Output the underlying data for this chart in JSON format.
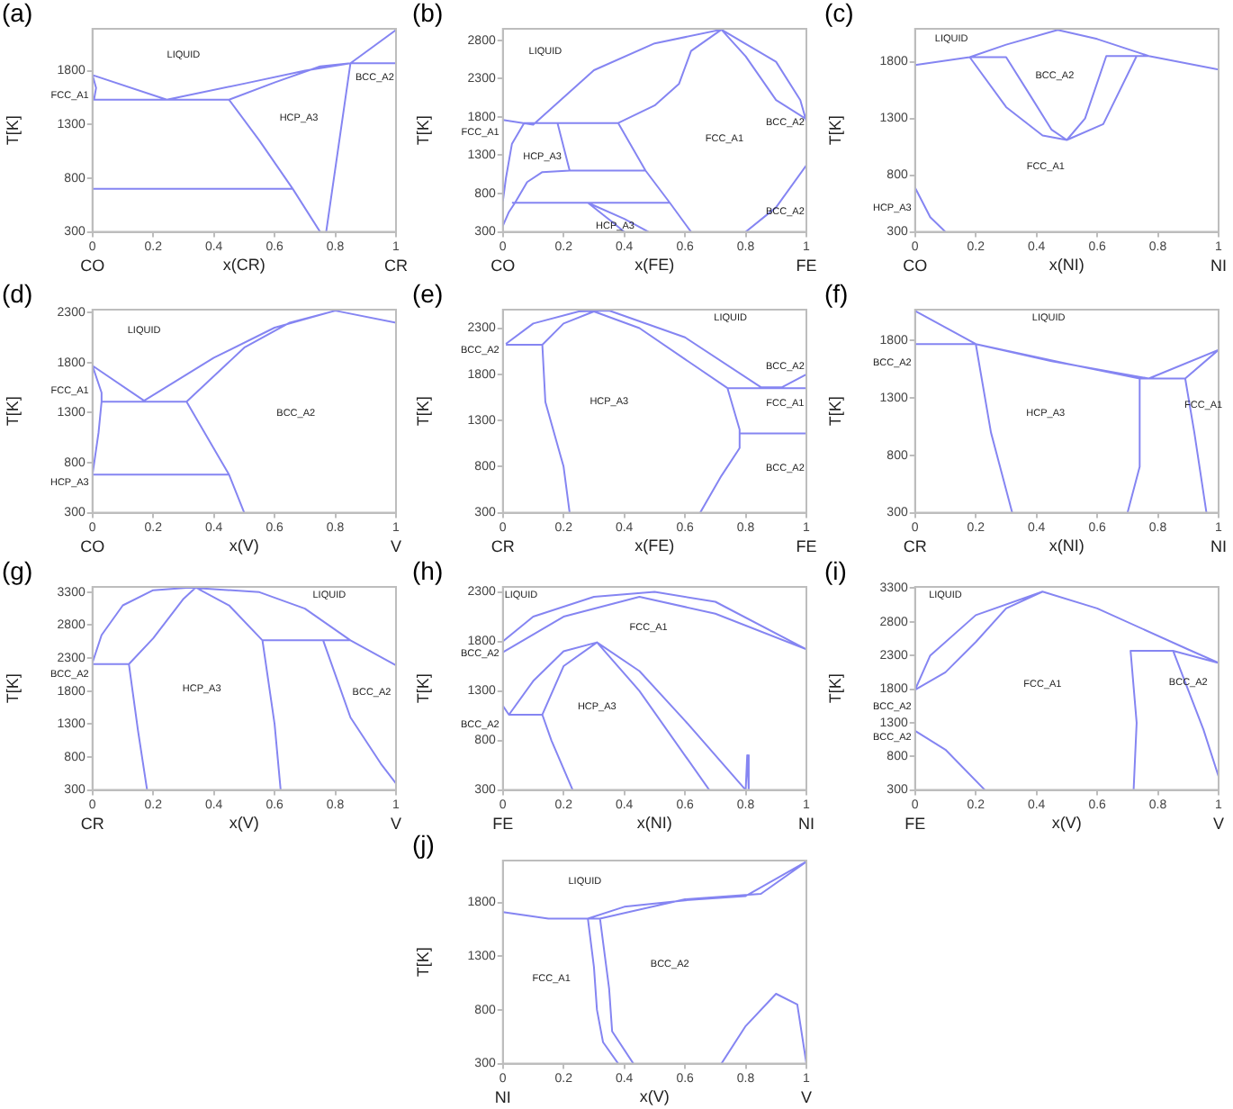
{
  "chart_data": [
    {
      "type": "line",
      "title": "(a)",
      "xlabel": "x(CR)",
      "ylabel": "T[K]",
      "xlim": [
        0,
        1
      ],
      "xticks": [
        0,
        0.2,
        0.4,
        0.6,
        0.8,
        1
      ],
      "ylim": [
        300,
        2190
      ],
      "yticks": [
        300,
        800,
        1300,
        1800
      ],
      "series": [
        {
          "color": "#8585f2",
          "x": [
            0,
            0.245,
            0.5,
            0.7,
            0.85,
            1,
            null,
            0.45,
            0.6,
            0.75,
            0.85,
            0.77,
            null,
            0.85,
            1,
            null,
            0,
            0.012,
            0.005,
            0.45,
            0.55,
            0.66,
            0.75,
            null,
            0,
            0.66
          ],
          "values": [
            1760,
            1530,
            1680,
            1800,
            1870,
            2180,
            null,
            1530,
            1690,
            1840,
            1870,
            300,
            null,
            1870,
            1870,
            null,
            1760,
            1640,
            1530,
            1530,
            1150,
            700,
            300,
            null,
            700,
            700
          ]
        }
      ],
      "annotations": [
        "CO",
        "CR",
        "LIQUID",
        "FCC_A1",
        "HCP_A3",
        "BCC_A2"
      ]
    },
    {
      "type": "line",
      "title": "(b)",
      "xlabel": "x(FE)",
      "ylabel": "T[K]",
      "xlim": [
        0,
        1
      ],
      "xticks": [
        0,
        0.2,
        0.4,
        0.6,
        0.8,
        1
      ],
      "ylim": [
        300,
        2950
      ],
      "yticks": [
        300,
        800,
        1300,
        1800,
        2300,
        2800
      ],
      "series": [
        {
          "color": "#8585f2",
          "x": [
            0,
            0.1,
            0.3,
            0.5,
            0.72,
            0.9,
            0.98,
            1,
            null,
            0.38,
            0.5,
            0.58,
            0.62,
            0.72,
            0.8,
            0.9,
            1,
            null,
            0,
            0.01,
            0.03,
            0.07,
            0.38,
            0.47,
            0.55,
            0.62,
            null,
            0.18,
            0.22,
            0.47,
            null,
            0,
            0.02,
            0.04,
            0.08,
            0.13,
            0.22,
            null,
            0.03,
            0.55,
            null,
            0.4,
            0.36,
            0.28,
            0.4,
            0.48,
            null,
            0.8,
            0.9,
            1
          ],
          "values": [
            1760,
            1700,
            2410,
            2760,
            2940,
            2520,
            2020,
            1740,
            null,
            1720,
            1950,
            2230,
            2660,
            2940,
            2590,
            2020,
            1770,
            null,
            700,
            1000,
            1450,
            1720,
            1720,
            1100,
            680,
            300,
            null,
            1720,
            1100,
            1100,
            null,
            380,
            560,
            680,
            950,
            1080,
            1100,
            null,
            680,
            680,
            null,
            300,
            430,
            680,
            470,
            300,
            null,
            300,
            620,
            1170
          ]
        }
      ],
      "annotations": [
        "CO",
        "FE",
        "LIQUID",
        "FCC_A1",
        "HCP_A3",
        "FCC_A1",
        "BCC_A2",
        "HCP_A3",
        "BCC_A2"
      ]
    },
    {
      "type": "line",
      "title": "(c)",
      "xlabel": "x(NI)",
      "ylabel": "T[K]",
      "xlim": [
        0,
        1
      ],
      "xticks": [
        0,
        0.2,
        0.4,
        0.6,
        0.8,
        1
      ],
      "ylim": [
        300,
        2090
      ],
      "yticks": [
        300,
        800,
        1300,
        1800
      ],
      "series": [
        {
          "color": "#8585f2",
          "x": [
            0,
            0.18,
            0.3,
            0.47,
            0.6,
            0.77,
            1,
            null,
            0.18,
            0.3,
            0.38,
            0.45,
            0.5,
            0.56,
            0.63,
            0.77,
            null,
            0.18,
            0.3,
            0.42,
            0.5,
            0.62,
            0.73,
            null,
            0,
            0.05,
            0.1
          ],
          "values": [
            1770,
            1840,
            1950,
            2080,
            2000,
            1850,
            1730,
            null,
            1840,
            1840,
            1500,
            1200,
            1110,
            1300,
            1850,
            1850,
            null,
            1840,
            1400,
            1150,
            1110,
            1250,
            1850,
            null,
            690,
            430,
            300
          ]
        }
      ],
      "annotations": [
        "CO",
        "NI",
        "LIQUID",
        "BCC_A2",
        "FCC_A1",
        "HCP_A3"
      ]
    },
    {
      "type": "line",
      "title": "(d)",
      "xlabel": "x(V)",
      "ylabel": "T[K]",
      "xlim": [
        0,
        1
      ],
      "xticks": [
        0,
        0.2,
        0.4,
        0.6,
        0.8,
        1
      ],
      "ylim": [
        300,
        2330
      ],
      "yticks": [
        300,
        800,
        1300,
        1800,
        2300
      ],
      "series": [
        {
          "color": "#8585f2",
          "x": [
            0,
            0.17,
            0.4,
            0.6,
            0.8,
            1,
            null,
            0.03,
            0.31,
            0.5,
            0.65,
            0.8,
            null,
            0,
            0.03,
            0.03,
            0.02,
            0,
            0.45,
            0.5,
            null,
            0.31,
            0.45
          ],
          "values": [
            1770,
            1420,
            1850,
            2150,
            2320,
            2200,
            null,
            1410,
            1410,
            1950,
            2200,
            2320,
            null,
            1770,
            1500,
            1410,
            1100,
            680,
            680,
            300,
            null,
            1410,
            680
          ]
        }
      ],
      "annotations": [
        "CO",
        "V",
        "LIQUID",
        "FCC_A1",
        "BCC_A2",
        "HCP_A3"
      ]
    },
    {
      "type": "line",
      "title": "(e)",
      "xlabel": "x(FE)",
      "ylabel": "T[K]",
      "xlim": [
        0,
        1
      ],
      "xticks": [
        0,
        0.2,
        0.4,
        0.6,
        0.8,
        1
      ],
      "ylim": [
        300,
        2500
      ],
      "yticks": [
        300,
        800,
        1300,
        1800,
        2300
      ],
      "series": [
        {
          "color": "#8585f2",
          "x": [
            0.01,
            0.1,
            0.25,
            0.35,
            0.6,
            0.85,
            0.92,
            1,
            null,
            0.01,
            0.13,
            0.2,
            0.3,
            0.45,
            0.74,
            1,
            null,
            0.13,
            0.14,
            0.2,
            0.22,
            null,
            0.74,
            0.78,
            0.78,
            0.72,
            0.65,
            null,
            0.78,
            1
          ],
          "values": [
            2130,
            2350,
            2480,
            2490,
            2200,
            1660,
            1660,
            1800,
            null,
            2120,
            2120,
            2350,
            2480,
            2300,
            1650,
            1650,
            null,
            2120,
            1500,
            800,
            300,
            null,
            1650,
            1200,
            1000,
            700,
            300,
            null,
            1160,
            1160
          ]
        }
      ],
      "annotations": [
        "CR",
        "FE",
        "LIQUID",
        "BCC_A2",
        "HCP_A3",
        "BCC_A2",
        "FCC_A1",
        "BCC_A2"
      ]
    },
    {
      "type": "line",
      "title": "(f)",
      "xlabel": "x(NI)",
      "ylabel": "T[K]",
      "xlim": [
        0,
        1
      ],
      "xticks": [
        0,
        0.2,
        0.4,
        0.6,
        0.8,
        1
      ],
      "ylim": [
        300,
        2070
      ],
      "yticks": [
        300,
        800,
        1300,
        1800
      ],
      "series": [
        {
          "color": "#8585f2",
          "x": [
            0,
            0.2,
            0.45,
            0.77,
            1,
            null,
            0,
            0.2,
            0.5,
            0.74,
            0.89,
            1,
            null,
            0.2,
            0.25,
            0.32,
            null,
            0.74,
            0.74,
            0.7,
            null,
            0.89,
            0.92,
            0.96
          ],
          "values": [
            2060,
            1770,
            1620,
            1470,
            1720,
            null,
            1770,
            1770,
            1600,
            1470,
            1470,
            1720,
            null,
            1770,
            1000,
            300,
            null,
            1470,
            700,
            300,
            null,
            1470,
            1000,
            300
          ]
        }
      ],
      "annotations": [
        "CR",
        "NI",
        "LIQUID",
        "BCC_A2",
        "HCP_A3",
        "FCC_A1"
      ]
    },
    {
      "type": "line",
      "title": "(g)",
      "xlabel": "x(V)",
      "ylabel": "T[K]",
      "xlim": [
        0,
        1
      ],
      "xticks": [
        0,
        0.2,
        0.4,
        0.6,
        0.8,
        1
      ],
      "ylim": [
        300,
        3380
      ],
      "yticks": [
        300,
        800,
        1300,
        1800,
        2300,
        2800,
        3300
      ],
      "series": [
        {
          "color": "#8585f2",
          "x": [
            0,
            0.03,
            0.1,
            0.2,
            0.32,
            0.55,
            0.7,
            0.85,
            1,
            null,
            0,
            0.12,
            0.2,
            0.3,
            0.34,
            0.45,
            0.56,
            0.85,
            null,
            0.12,
            0.15,
            0.18,
            null,
            0.56,
            0.6,
            0.62,
            null,
            0.76,
            0.85,
            0.95,
            1
          ],
          "values": [
            2230,
            2650,
            3100,
            3330,
            3370,
            3300,
            3050,
            2570,
            2190,
            null,
            2210,
            2210,
            2600,
            3200,
            3370,
            3100,
            2570,
            2570,
            null,
            2210,
            1200,
            300,
            null,
            2570,
            1300,
            300,
            null,
            2570,
            1400,
            700,
            400
          ]
        }
      ],
      "annotations": [
        "CR",
        "V",
        "LIQUID",
        "BCC_A2",
        "HCP_A3",
        "BCC_A2"
      ]
    },
    {
      "type": "line",
      "title": "(h)",
      "xlabel": "x(NI)",
      "ylabel": "T[K]",
      "xlim": [
        0,
        1
      ],
      "xticks": [
        0,
        0.2,
        0.4,
        0.6,
        0.8,
        1
      ],
      "ylim": [
        300,
        2350
      ],
      "yticks": [
        300,
        800,
        1300,
        1800,
        2300
      ],
      "series": [
        {
          "color": "#8585f2",
          "x": [
            0,
            0.1,
            0.3,
            0.5,
            0.7,
            1,
            null,
            0,
            0.2,
            0.45,
            0.7,
            1,
            null,
            0,
            0.02,
            0.1,
            0.2,
            0.31,
            0.45,
            0.6,
            0.8,
            0.805,
            0.81,
            null,
            0.02,
            0.13,
            0.2,
            0.31,
            0.45,
            0.68,
            null,
            0.13,
            0.16,
            0.23
          ],
          "values": [
            1800,
            2050,
            2250,
            2300,
            2200,
            1720,
            null,
            1690,
            2050,
            2250,
            2080,
            1720,
            null,
            1150,
            1060,
            1400,
            1700,
            1790,
            1500,
            1000,
            300,
            650,
            300,
            null,
            1060,
            1060,
            1550,
            1790,
            1300,
            300,
            null,
            1060,
            800,
            300
          ]
        }
      ],
      "annotations": [
        "FE",
        "NI",
        "LIQUID",
        "FCC_A1",
        "BCC_A2",
        "HCP_A3",
        "BCC_A2"
      ]
    },
    {
      "type": "line",
      "title": "(i)",
      "xlabel": "x(V)",
      "ylabel": "T[K]",
      "xlim": [
        0,
        1
      ],
      "xticks": [
        0,
        0.2,
        0.4,
        0.6,
        0.8,
        1
      ],
      "ylim": [
        300,
        3320
      ],
      "yticks": [
        300,
        800,
        1300,
        1800,
        2300,
        2800,
        3300
      ],
      "series": [
        {
          "color": "#8585f2",
          "x": [
            0,
            0.05,
            0.2,
            0.42,
            0.6,
            0.9,
            1,
            null,
            0,
            0.1,
            0.2,
            0.3,
            0.42,
            null,
            0.72,
            0.73,
            0.71,
            0.85,
            1,
            null,
            0.85,
            0.95,
            1,
            null,
            0,
            0.1,
            0.23
          ],
          "values": [
            1790,
            2300,
            2900,
            3250,
            3000,
            2390,
            2190,
            null,
            1790,
            2050,
            2500,
            3000,
            3250,
            null,
            300,
            1300,
            2370,
            2370,
            2190,
            null,
            2370,
            1200,
            500,
            null,
            1180,
            900,
            300
          ]
        }
      ],
      "annotations": [
        "FE",
        "V",
        "LIQUID",
        "FCC_A1",
        "BCC_A2",
        "BCC_A2",
        "BCC_A2"
      ]
    },
    {
      "type": "line",
      "title": "(j)",
      "xlabel": "x(V)",
      "ylabel": "T[K]",
      "xlim": [
        0,
        1
      ],
      "xticks": [
        0,
        0.2,
        0.4,
        0.6,
        0.8,
        1
      ],
      "ylim": [
        300,
        2190
      ],
      "yticks": [
        300,
        800,
        1300,
        1800
      ],
      "series": [
        {
          "color": "#8585f2",
          "x": [
            0,
            0.15,
            0.28,
            0.4,
            0.6,
            0.8,
            1,
            null,
            0.28,
            0.32,
            0.6,
            0.85,
            1,
            null,
            0.28,
            0.3,
            0.31,
            0.33,
            0.38,
            null,
            0.32,
            0.35,
            0.36,
            0.43,
            null,
            0.72,
            0.8,
            0.9,
            0.97,
            1
          ],
          "values": [
            1710,
            1650,
            1650,
            1760,
            1820,
            1860,
            2180,
            null,
            1650,
            1650,
            1830,
            1880,
            2180,
            null,
            1650,
            1200,
            800,
            500,
            300,
            null,
            1650,
            1000,
            600,
            300,
            null,
            300,
            650,
            950,
            850,
            300
          ]
        }
      ],
      "annotations": [
        "NI",
        "V",
        "LIQUID",
        "FCC_A1",
        "BCC_A2"
      ]
    }
  ]
}
